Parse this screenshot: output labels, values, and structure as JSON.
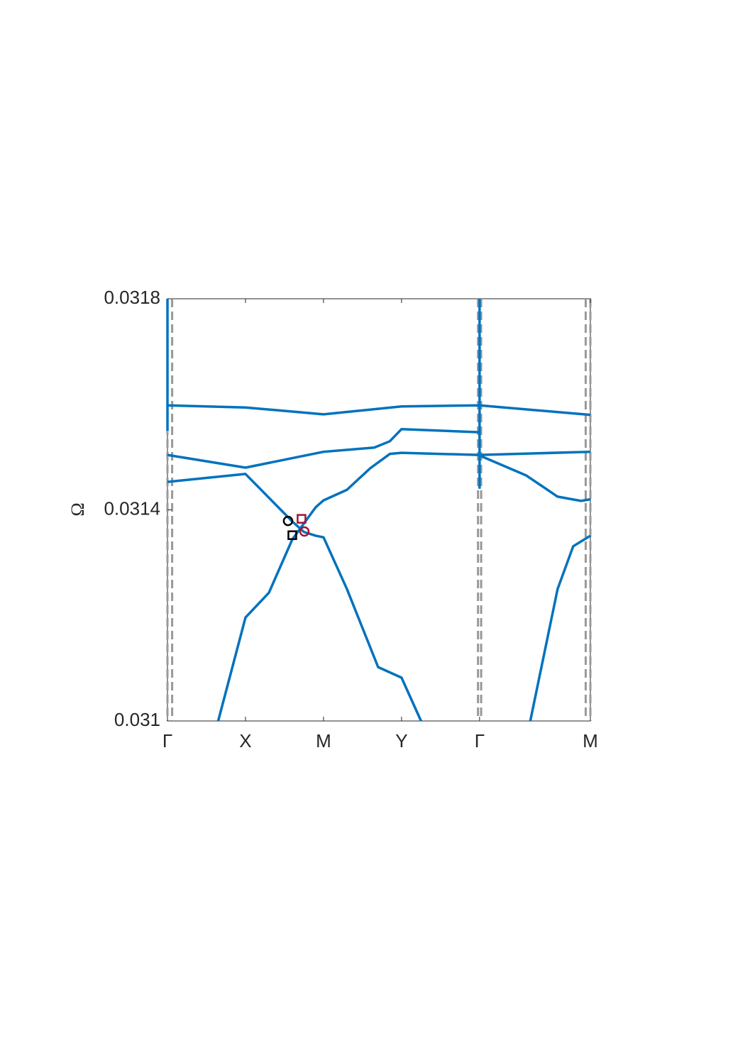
{
  "chart_data": {
    "type": "line",
    "ylabel": "Ω",
    "xlim": [
      0,
      5.42
    ],
    "ylim": [
      0.031,
      0.0318
    ],
    "yticks": [
      0.031,
      0.0314,
      0.0318
    ],
    "xticks": [
      {
        "value": 0,
        "label": "Γ"
      },
      {
        "value": 1,
        "label": "X"
      },
      {
        "value": 2,
        "label": "M"
      },
      {
        "value": 3,
        "label": "Y"
      },
      {
        "value": 4,
        "label": "Γ"
      },
      {
        "value": 5.42,
        "label": "M"
      }
    ],
    "vlines": [
      0,
      0.06,
      3.98,
      4.02,
      5.36,
      5.42
    ],
    "vline_color": "#999999",
    "series": [
      {
        "color": "#0072bd",
        "x": [
          0,
          1,
          2,
          3,
          4,
          5.42
        ],
        "values": [
          0.031598,
          0.031594,
          0.031581,
          0.031596,
          0.031598,
          0.03158
        ]
      },
      {
        "color": "#0072bd",
        "x": [
          0,
          1,
          2,
          2.65,
          2.85,
          3,
          4
        ],
        "values": [
          0.031504,
          0.03148,
          0.03151,
          0.031518,
          0.03153,
          0.031553,
          0.031547
        ]
      },
      {
        "color": "#0072bd",
        "x": [
          4,
          4.6,
          5.0,
          5.3,
          5.42
        ],
        "values": [
          0.031503,
          0.031465,
          0.031425,
          0.031417,
          0.03142
        ]
      },
      {
        "color": "#0072bd",
        "x": [
          0,
          1,
          1.6,
          1.75,
          1.9,
          2,
          2.3,
          2.7,
          3.0,
          3.25
        ],
        "values": [
          0.031453,
          0.031468,
          0.031378,
          0.031358,
          0.031351,
          0.031348,
          0.03125,
          0.031102,
          0.031082,
          0.031
        ]
      },
      {
        "color": "#0072bd",
        "x": [
          0.65,
          1,
          1.3,
          1.6,
          1.9,
          2,
          2.3,
          2.6,
          2.85,
          3,
          4,
          5.42
        ],
        "values": [
          0.031,
          0.031196,
          0.031243,
          0.031344,
          0.031405,
          0.031418,
          0.031438,
          0.031479,
          0.031506,
          0.031508,
          0.031504,
          0.03151
        ]
      },
      {
        "color": "#0072bd",
        "x": [
          4.65,
          5.0,
          5.2,
          5.42
        ],
        "values": [
          0.031,
          0.03125,
          0.031331,
          0.031351
        ]
      },
      {
        "color": "#0072bd",
        "x": [
          0,
          0
        ],
        "values": [
          0.0318,
          0.03155
        ]
      },
      {
        "color": "#0072bd",
        "x": [
          4,
          4
        ],
        "values": [
          0.0318,
          0.03144
        ]
      }
    ],
    "markers": [
      {
        "shape": "circle",
        "color": "#000000",
        "x": 1.545,
        "y": 0.031379
      },
      {
        "shape": "square",
        "color": "#000000",
        "x": 1.6,
        "y": 0.031352
      },
      {
        "shape": "square",
        "color": "#a2142f",
        "x": 1.718,
        "y": 0.031383
      },
      {
        "shape": "circle",
        "color": "#a2142f",
        "x": 1.755,
        "y": 0.031359
      }
    ]
  }
}
